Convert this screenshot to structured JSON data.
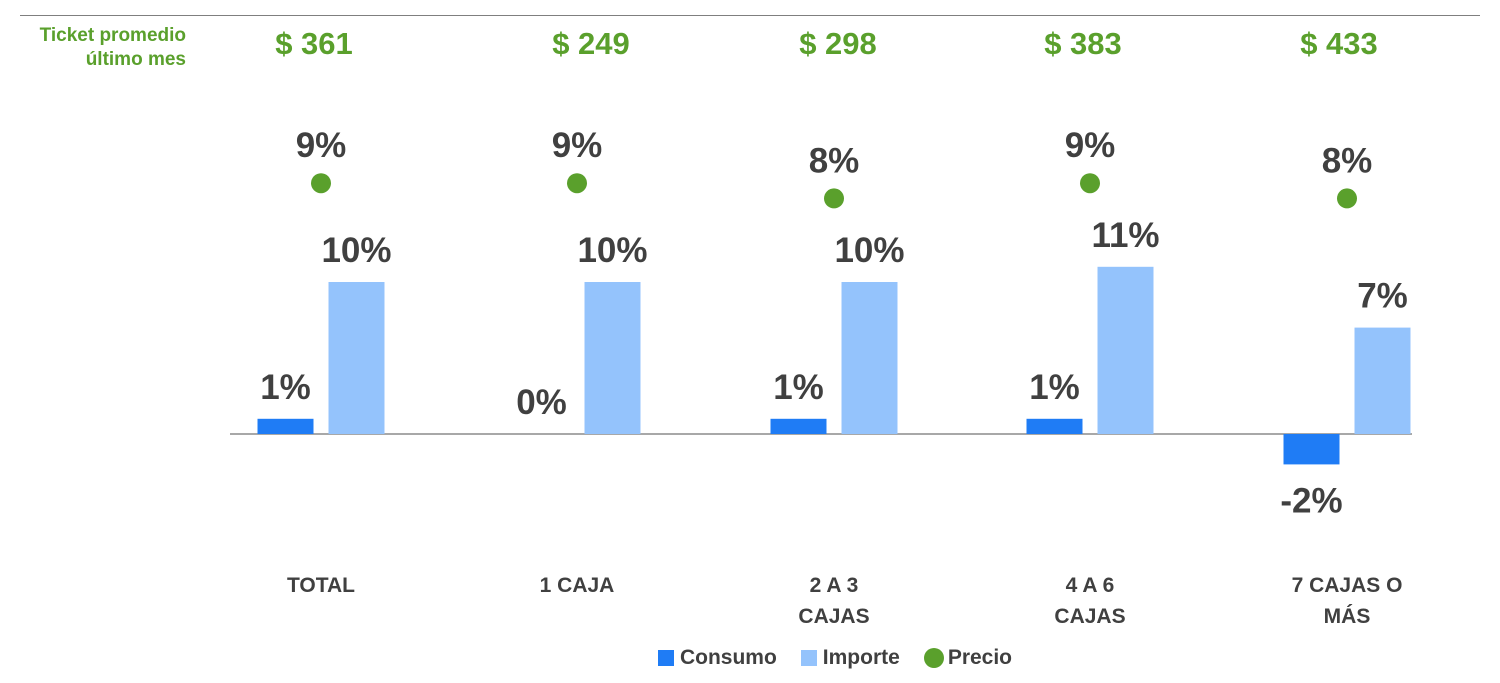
{
  "ticket": {
    "label_line1": "Ticket promedio",
    "label_line2": "último mes",
    "values": [
      "$ 361",
      "$ 249",
      "$ 298",
      "$ 383",
      "$ 433"
    ]
  },
  "legend": {
    "consumo": "Consumo",
    "importe": "Importe",
    "precio": "Precio"
  },
  "colors": {
    "consumo": "#1f7cf5",
    "importe": "#94c3fc",
    "precio": "#5aa02c",
    "label_text": "#404040",
    "ticket_text": "#5aa02c"
  },
  "chart_data": {
    "type": "bar",
    "categories": [
      [
        "TOTAL"
      ],
      [
        "1 CAJA"
      ],
      [
        "2 A 3",
        "CAJAS"
      ],
      [
        "4 A 6",
        "CAJAS"
      ],
      [
        "7 CAJAS O",
        "MÁS"
      ]
    ],
    "series": [
      {
        "name": "Consumo",
        "type": "bar",
        "values": [
          1,
          0,
          1,
          1,
          -2
        ],
        "labels": [
          "1%",
          "0%",
          "1%",
          "1%",
          "-2%"
        ]
      },
      {
        "name": "Importe",
        "type": "bar",
        "values": [
          10,
          10,
          10,
          11,
          7
        ],
        "labels": [
          "10%",
          "10%",
          "10%",
          "11%",
          "7%"
        ]
      },
      {
        "name": "Precio",
        "type": "scatter",
        "values": [
          9,
          9,
          8,
          9,
          8
        ],
        "labels": [
          "9%",
          "9%",
          "8%",
          "9%",
          "8%"
        ]
      }
    ]
  }
}
